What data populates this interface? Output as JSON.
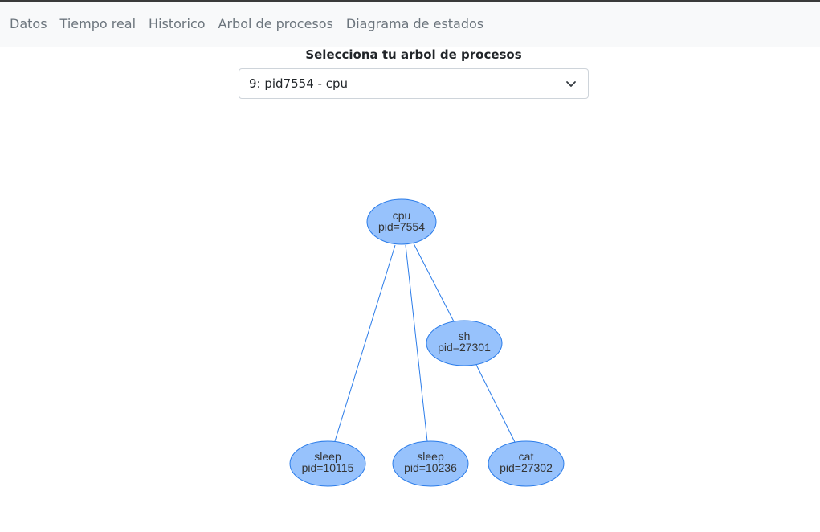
{
  "nav": {
    "items": [
      "Datos",
      "Tiempo real",
      "Historico",
      "Arbol de procesos",
      "Diagrama de estados"
    ]
  },
  "selector": {
    "title": "Selecciona tu arbol de procesos",
    "value": "9: pid7554 - cpu"
  },
  "tree": {
    "nodes": [
      {
        "id": "n7554",
        "name": "cpu",
        "pid": "pid=7554"
      },
      {
        "id": "n27301",
        "name": "sh",
        "pid": "pid=27301"
      },
      {
        "id": "n10115",
        "name": "sleep",
        "pid": "pid=10115"
      },
      {
        "id": "n10236",
        "name": "sleep",
        "pid": "pid=10236"
      },
      {
        "id": "n27302",
        "name": "cat",
        "pid": "pid=27302"
      }
    ],
    "edges": [
      {
        "from": "n7554",
        "to": "n10115"
      },
      {
        "from": "n7554",
        "to": "n10236"
      },
      {
        "from": "n7554",
        "to": "n27301"
      },
      {
        "from": "n27301",
        "to": "n27302"
      }
    ]
  },
  "colors": {
    "node_fill": "#97c2fc",
    "node_border": "#2b7ce9",
    "edge": "#2b7ce9",
    "nav_background": "#f8f9fa"
  }
}
